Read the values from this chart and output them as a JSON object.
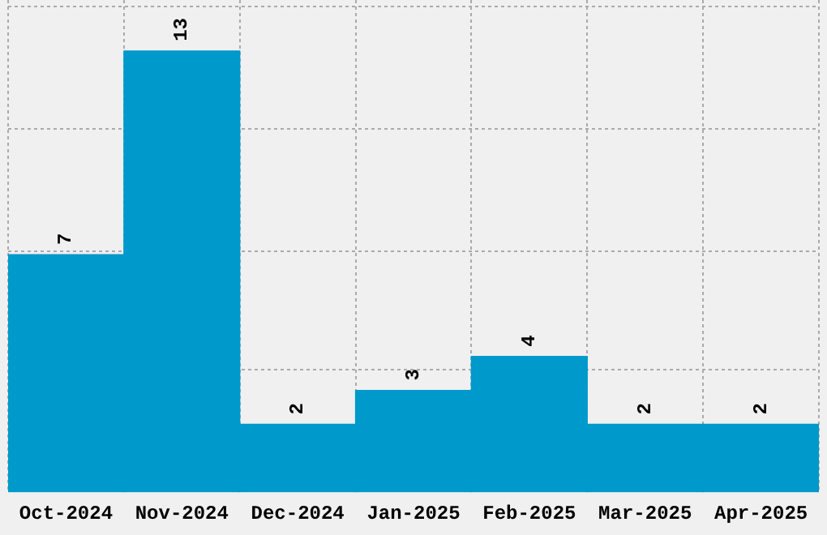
{
  "chart_data": {
    "type": "bar",
    "categories": [
      "Oct-2024",
      "Nov-2024",
      "Dec-2024",
      "Jan-2025",
      "Feb-2025",
      "Mar-2025",
      "Apr-2025"
    ],
    "values": [
      7,
      13,
      2,
      3,
      4,
      2,
      2
    ],
    "color": "#0099cc",
    "data_labels": true,
    "grid": true,
    "tick_labels": "x",
    "ylim": [
      0,
      14.5
    ],
    "yticks": [
      {
        "value": 3.6,
        "label": null
      },
      {
        "value": 7.1,
        "label": null
      },
      {
        "value": 10.7,
        "label": null
      },
      {
        "value": 14.3,
        "label": null
      }
    ]
  }
}
